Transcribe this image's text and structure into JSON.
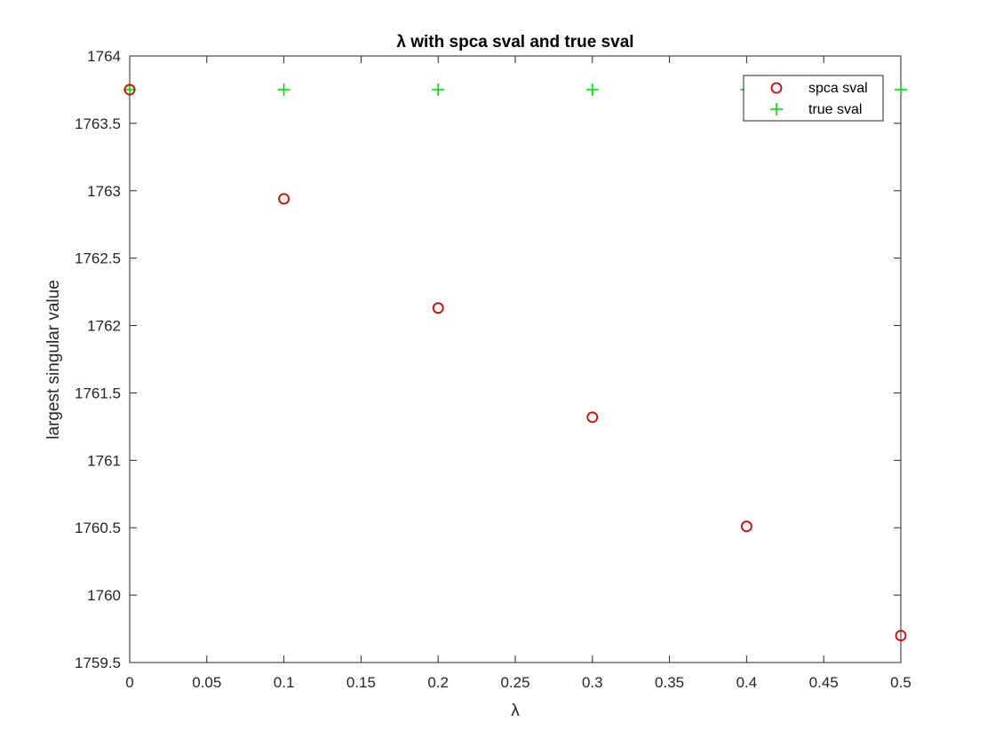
{
  "chart_data": {
    "type": "scatter",
    "title": "λ with spca sval and true sval",
    "xlabel": "λ",
    "ylabel": "largest singular value",
    "xlim": [
      0,
      0.5
    ],
    "ylim": [
      1759.5,
      1764
    ],
    "xticks": [
      0,
      0.05,
      0.1,
      0.15,
      0.2,
      0.25,
      0.3,
      0.35,
      0.4,
      0.45,
      0.5
    ],
    "xtick_labels": [
      "0",
      "0.05",
      "0.1",
      "0.15",
      "0.2",
      "0.25",
      "0.3",
      "0.35",
      "0.4",
      "0.45",
      "0.5"
    ],
    "yticks": [
      1759.5,
      1760,
      1760.5,
      1761,
      1761.5,
      1762,
      1762.5,
      1763,
      1763.5,
      1764
    ],
    "ytick_labels": [
      "1759.5",
      "1760",
      "1760.5",
      "1761",
      "1761.5",
      "1762",
      "1762.5",
      "1763",
      "1763.5",
      "1764"
    ],
    "grid": false,
    "legend_position": "top-right",
    "x": [
      0,
      0.1,
      0.2,
      0.3,
      0.4,
      0.5
    ],
    "series": [
      {
        "name": "spca sval",
        "marker": "circle",
        "color": "#d90000",
        "values": [
          1763.75,
          1762.94,
          1762.13,
          1761.32,
          1760.51,
          1759.7
        ]
      },
      {
        "name": "true sval",
        "marker": "plus",
        "color": "#00e000",
        "values": [
          1763.75,
          1763.75,
          1763.75,
          1763.75,
          1763.75,
          1763.75
        ]
      }
    ]
  }
}
